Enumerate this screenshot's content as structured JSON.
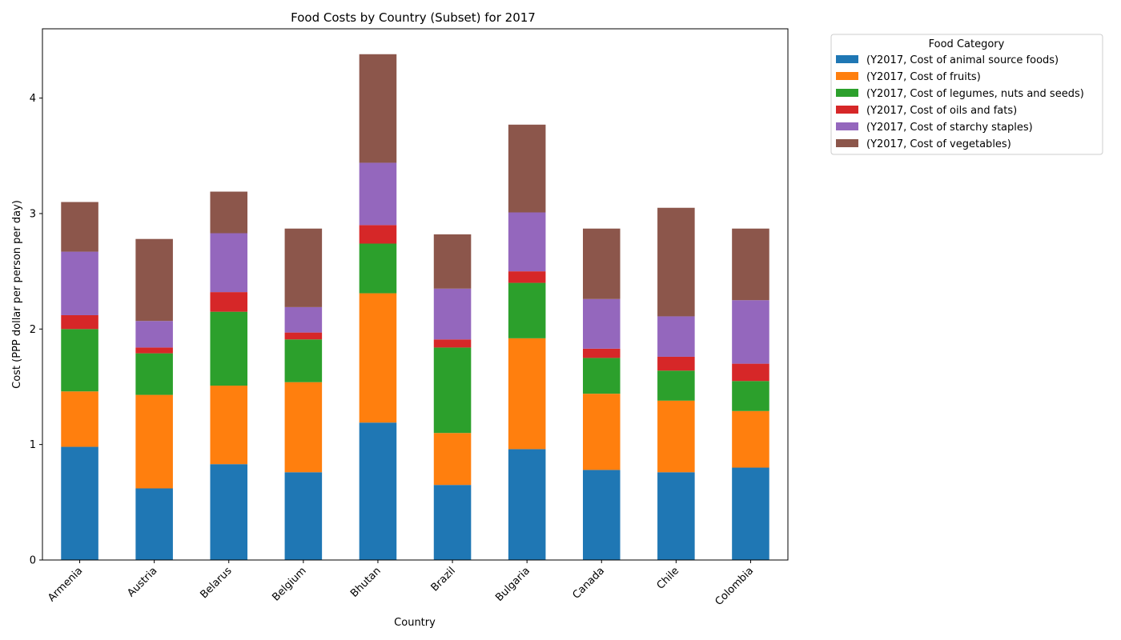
{
  "chart_data": {
    "type": "bar",
    "stacked": true,
    "title": "Food Costs by Country (Subset) for 2017",
    "xlabel": "Country",
    "ylabel": "Cost (PPP dollar per person per day)",
    "ylim": [
      0,
      4.6
    ],
    "yticks": [
      0,
      1,
      2,
      3,
      4
    ],
    "grid": false,
    "legend_title": "Food Category",
    "legend_position": "outside-top-right",
    "categories": [
      "Armenia",
      "Austria",
      "Belarus",
      "Belgium",
      "Bhutan",
      "Brazil",
      "Bulgaria",
      "Canada",
      "Chile",
      "Colombia"
    ],
    "series": [
      {
        "name": "(Y2017, Cost of animal source foods)",
        "color": "#1f77b4",
        "values": [
          0.98,
          0.62,
          0.83,
          0.76,
          1.19,
          0.65,
          0.96,
          0.78,
          0.76,
          0.8
        ]
      },
      {
        "name": "(Y2017, Cost of fruits)",
        "color": "#ff7f0e",
        "values": [
          0.48,
          0.81,
          0.68,
          0.78,
          1.12,
          0.45,
          0.96,
          0.66,
          0.62,
          0.49
        ]
      },
      {
        "name": "(Y2017, Cost of legumes, nuts and seeds)",
        "color": "#2ca02c",
        "values": [
          0.54,
          0.36,
          0.64,
          0.37,
          0.43,
          0.74,
          0.48,
          0.31,
          0.26,
          0.26
        ]
      },
      {
        "name": "(Y2017, Cost of oils and fats)",
        "color": "#d62728",
        "values": [
          0.12,
          0.05,
          0.17,
          0.06,
          0.16,
          0.07,
          0.1,
          0.08,
          0.12,
          0.15
        ]
      },
      {
        "name": "(Y2017, Cost of starchy staples)",
        "color": "#9467bd",
        "values": [
          0.55,
          0.23,
          0.51,
          0.22,
          0.54,
          0.44,
          0.51,
          0.43,
          0.35,
          0.55
        ]
      },
      {
        "name": "(Y2017, Cost of vegetables)",
        "color": "#8c564b",
        "values": [
          0.43,
          0.71,
          0.36,
          0.68,
          0.94,
          0.47,
          0.76,
          0.61,
          0.94,
          0.62
        ]
      }
    ]
  }
}
